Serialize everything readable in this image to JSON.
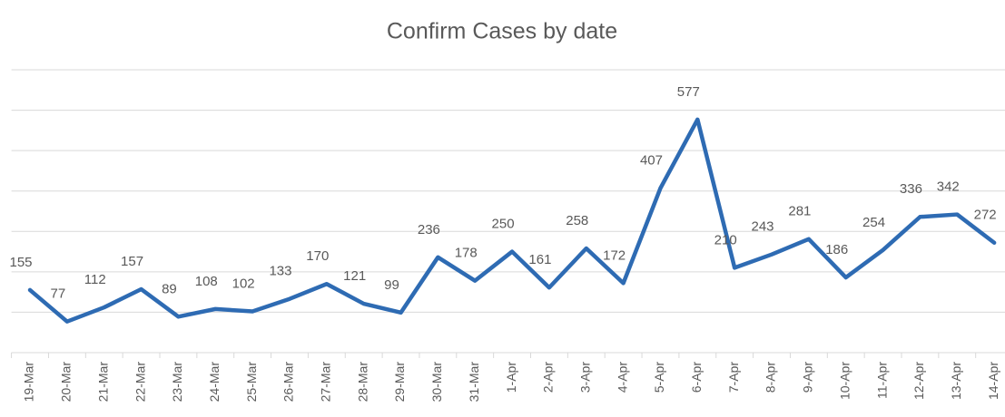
{
  "chart_data": {
    "type": "line",
    "title": "Confirm Cases by date",
    "categories": [
      "19-Mar",
      "20-Mar",
      "21-Mar",
      "22-Mar",
      "23-Mar",
      "24-Mar",
      "25-Mar",
      "26-Mar",
      "27-Mar",
      "28-Mar",
      "29-Mar",
      "30-Mar",
      "31-Mar",
      "1-Apr",
      "2-Apr",
      "3-Apr",
      "4-Apr",
      "5-Apr",
      "6-Apr",
      "7-Apr",
      "8-Apr",
      "9-Apr",
      "10-Apr",
      "11-Apr",
      "12-Apr",
      "13-Apr",
      "14-Apr"
    ],
    "values": [
      155,
      77,
      112,
      157,
      89,
      108,
      102,
      133,
      170,
      121,
      99,
      236,
      178,
      250,
      161,
      258,
      172,
      407,
      577,
      210,
      243,
      281,
      186,
      254,
      336,
      342,
      272
    ],
    "color": "#2e6bb3",
    "ylim": [
      0,
      700
    ],
    "yticks": [
      0,
      100,
      200,
      300,
      400,
      500,
      600,
      700
    ],
    "grid": true
  }
}
